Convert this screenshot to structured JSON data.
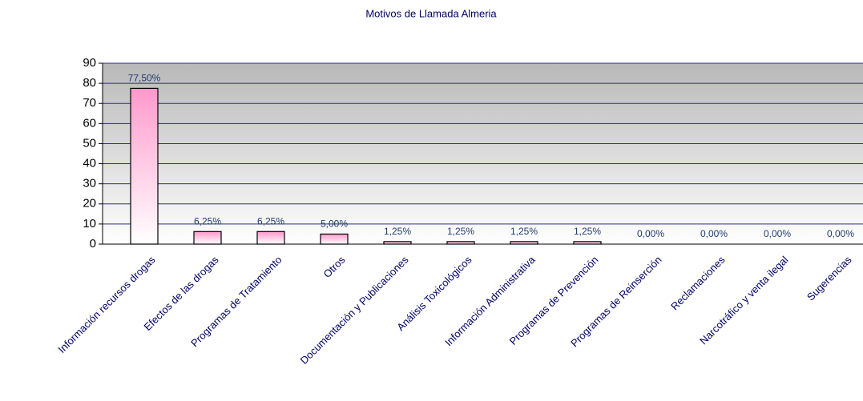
{
  "chart_data": {
    "type": "bar",
    "title": "Motivos de Llamada Almeria",
    "categories": [
      "Información recursos drogas",
      "Efectos de las drogas",
      "Programas de Tratamiento",
      "Otros",
      "Documentación y Publicaciones",
      "Análisis Toxicológicos",
      "Información Administrativa",
      "Programas de Prevención",
      "Programas de Reinserción",
      "Reclamaciones",
      "Narcotráfico y venta ilegal",
      "Sugerencias"
    ],
    "values": [
      77.5,
      6.25,
      6.25,
      5,
      1.25,
      1.25,
      1.25,
      1.25,
      0,
      0,
      0,
      0
    ],
    "value_labels": [
      "77,50%",
      "6,25%",
      "6,25%",
      "5,00%",
      "1,25%",
      "1,25%",
      "1,25%",
      "1,25%",
      "0,00%",
      "0,00%",
      "0,00%",
      "0,00%"
    ],
    "color": "#ff99cc",
    "ylim": [
      0,
      90
    ],
    "yticks": [
      0,
      10,
      20,
      30,
      40,
      50,
      60,
      70,
      80,
      90
    ],
    "grid": true
  }
}
